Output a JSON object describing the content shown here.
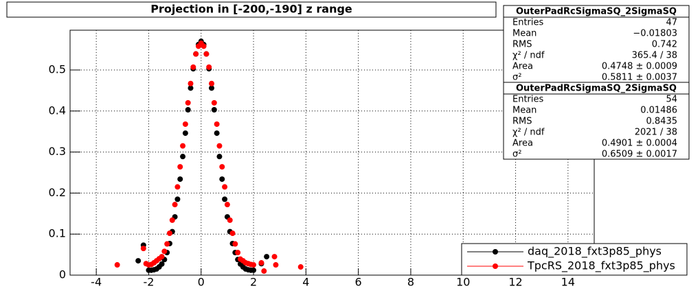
{
  "chart_data": {
    "type": "scatter",
    "title": "Projection in [-200,-190] z range",
    "xlim": [
      -5,
      15
    ],
    "ylim": [
      0,
      0.597
    ],
    "xticks": [
      -4,
      -2,
      0,
      2,
      4,
      6,
      8,
      10,
      12,
      14
    ],
    "yticks": [
      0,
      0.1,
      0.2,
      0.3,
      0.4,
      0.5
    ],
    "grid": true,
    "legend": "bottom-right",
    "series": [
      {
        "name": "daq_2018_fxt3p85_phys",
        "color": "#000000",
        "x": [
          -2.4,
          -2.2,
          -2.0,
          -1.9,
          -1.8,
          -1.7,
          -1.6,
          -1.5,
          -1.4,
          -1.3,
          -1.2,
          -1.1,
          -1.0,
          -0.9,
          -0.8,
          -0.7,
          -0.6,
          -0.5,
          -0.4,
          -0.3,
          -0.2,
          -0.1,
          0,
          0.1,
          0.2,
          0.3,
          0.4,
          0.5,
          0.6,
          0.7,
          0.8,
          0.9,
          1.0,
          1.1,
          1.2,
          1.3,
          1.4,
          1.5,
          1.6,
          1.7,
          1.8,
          1.9,
          2.0,
          2.3,
          2.5
        ],
        "values": [
          0.035,
          0.073,
          0.012,
          0.012,
          0.013,
          0.015,
          0.02,
          0.027,
          0.038,
          0.055,
          0.077,
          0.106,
          0.142,
          0.185,
          0.234,
          0.289,
          0.346,
          0.403,
          0.456,
          0.503,
          0.539,
          0.562,
          0.57,
          0.562,
          0.539,
          0.503,
          0.456,
          0.403,
          0.346,
          0.289,
          0.234,
          0.185,
          0.142,
          0.106,
          0.077,
          0.055,
          0.038,
          0.027,
          0.02,
          0.015,
          0.013,
          0.012,
          0.012,
          0.028,
          0.045
        ]
      },
      {
        "name": "TpcRS_2018_fxt3p85_phys",
        "color": "#ff0000",
        "x": [
          -3.2,
          -2.2,
          -2.1,
          -2.0,
          -1.9,
          -1.8,
          -1.7,
          -1.6,
          -1.5,
          -1.4,
          -1.3,
          -1.2,
          -1.1,
          -1.0,
          -0.9,
          -0.8,
          -0.7,
          -0.6,
          -0.5,
          -0.4,
          -0.3,
          -0.2,
          -0.1,
          0,
          0.1,
          0.2,
          0.3,
          0.4,
          0.5,
          0.6,
          0.7,
          0.8,
          0.9,
          1.0,
          1.1,
          1.2,
          1.3,
          1.4,
          1.5,
          1.6,
          1.7,
          1.8,
          1.9,
          2.0,
          2.3,
          2.4,
          2.8,
          2.85,
          3.8
        ],
        "values": [
          0.025,
          0.065,
          0.028,
          0.025,
          0.026,
          0.03,
          0.035,
          0.04,
          0.045,
          0.058,
          0.076,
          0.102,
          0.134,
          0.172,
          0.215,
          0.264,
          0.315,
          0.368,
          0.42,
          0.467,
          0.507,
          0.539,
          0.558,
          0.565,
          0.558,
          0.539,
          0.507,
          0.467,
          0.42,
          0.368,
          0.315,
          0.264,
          0.215,
          0.172,
          0.134,
          0.102,
          0.076,
          0.055,
          0.039,
          0.035,
          0.03,
          0.028,
          0.026,
          0.025,
          0.03,
          0.01,
          0.045,
          0.025,
          0.02
        ]
      }
    ],
    "stats_boxes": [
      {
        "title": "OuterPadRcSigmaSQ_2SigmaSQ",
        "rows": [
          [
            "Entries",
            "47"
          ],
          [
            "Mean",
            "−0.01803"
          ],
          [
            "RMS",
            "0.742"
          ],
          [
            "χ² / ndf",
            "365.4 / 38"
          ],
          [
            "Area",
            "0.4748 ± 0.0009"
          ],
          [
            "σ²",
            "0.5811 ± 0.0037"
          ]
        ]
      },
      {
        "title": "OuterPadRcSigmaSQ_2SigmaSQ",
        "rows": [
          [
            "Entries",
            "54"
          ],
          [
            "Mean",
            "0.01486"
          ],
          [
            "RMS",
            "0.8435"
          ],
          [
            "χ² / ndf",
            "2021 / 38"
          ],
          [
            "Area",
            "0.4901 ± 0.0004"
          ],
          [
            "σ²",
            "0.6509 ± 0.0017"
          ]
        ]
      }
    ]
  }
}
